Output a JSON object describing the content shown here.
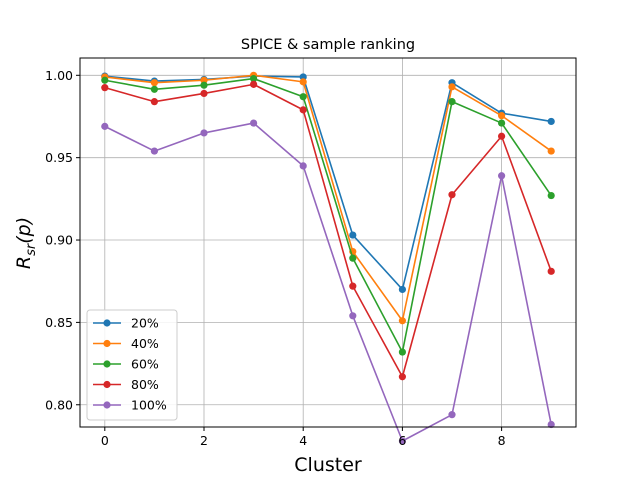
{
  "chart_data": {
    "type": "line",
    "title": "SPICE & sample ranking",
    "xlabel": "Cluster",
    "ylabel_parts": {
      "main": "R",
      "sub": "sr",
      "suffix": "(p)"
    },
    "xlim": [
      -0.5,
      9.5
    ],
    "ylim": [
      0.7865,
      1.0105
    ],
    "x_ticks": [
      0,
      2,
      4,
      6,
      8
    ],
    "x_tick_labels": [
      "0",
      "2",
      "4",
      "6",
      "8"
    ],
    "y_ticks": [
      0.8,
      0.85,
      0.9,
      0.95,
      1.0
    ],
    "y_tick_labels": [
      "0.80",
      "0.85",
      "0.90",
      "0.95",
      "1.00"
    ],
    "grid": true,
    "legend_position": "lower-left",
    "x": [
      0,
      1,
      2,
      3,
      4,
      5,
      6,
      7,
      8,
      9
    ],
    "series": [
      {
        "name": "20%",
        "color": "#1f77b4",
        "values": [
          0.9995,
          0.9965,
          0.9975,
          0.9995,
          0.999,
          0.903,
          0.87,
          0.9955,
          0.977,
          0.972
        ]
      },
      {
        "name": "40%",
        "color": "#ff7f0e",
        "values": [
          0.999,
          0.9955,
          0.997,
          1.0,
          0.996,
          0.893,
          0.851,
          0.993,
          0.9755,
          0.954
        ]
      },
      {
        "name": "60%",
        "color": "#2ca02c",
        "values": [
          0.997,
          0.9915,
          0.994,
          0.998,
          0.987,
          0.889,
          0.832,
          0.984,
          0.971,
          0.927
        ]
      },
      {
        "name": "80%",
        "color": "#d62728",
        "values": [
          0.9925,
          0.984,
          0.989,
          0.9945,
          0.979,
          0.872,
          0.817,
          0.9275,
          0.963,
          0.881
        ]
      },
      {
        "name": "100%",
        "color": "#9467bd",
        "values": [
          0.969,
          0.954,
          0.965,
          0.971,
          0.945,
          0.854,
          0.778,
          0.794,
          0.939,
          0.788
        ]
      }
    ]
  }
}
